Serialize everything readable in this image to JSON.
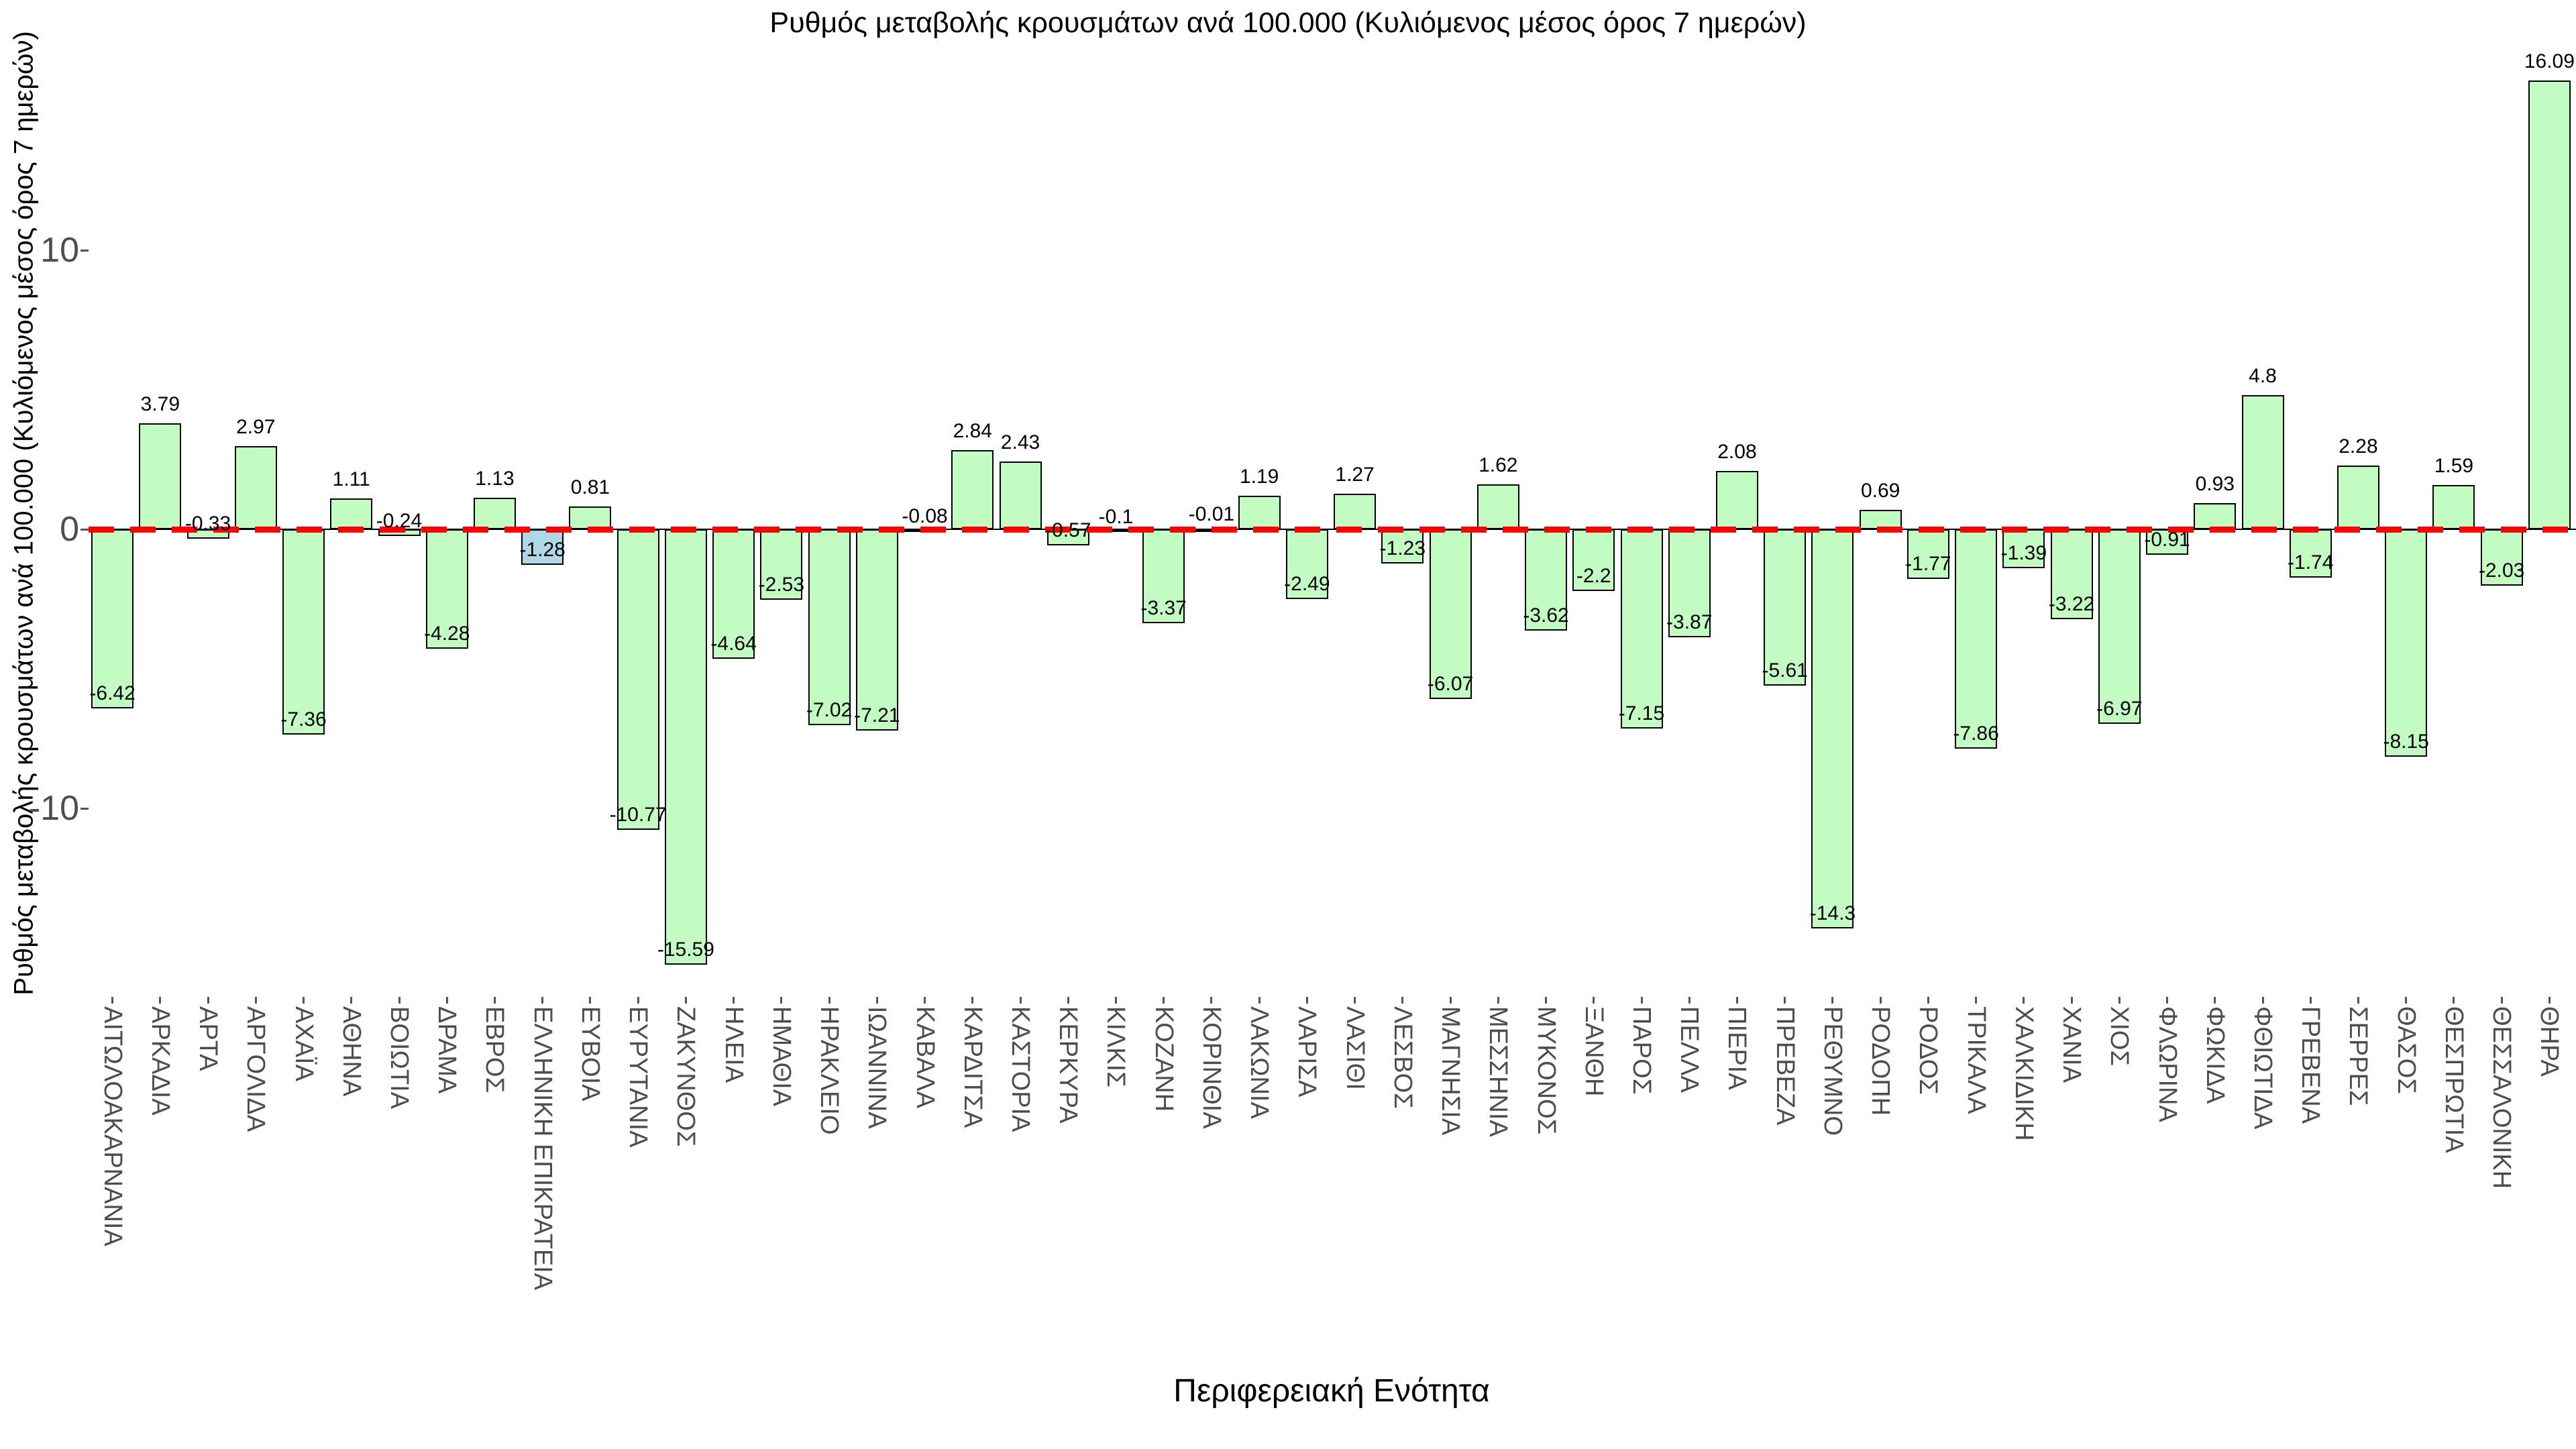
{
  "chart_data": {
    "type": "bar",
    "title": "Ρυθμός μεταβολής κρουσμάτων ανά 100.000 (Κυλιόμενος μέσος όρος 7 ημερών)",
    "xlabel": "Περιφερειακή Ενότητα",
    "ylabel": "Ρυθμός μεταβολής κρουσμάτων ανά 100.000 (Κυλιόμενος μέσος όρος 7 ημερών)",
    "categories": [
      "ΑΙΤΩΛΟΑΚΑΡΝΑΝΙΑ",
      "ΑΡΚΑΔΙΑ",
      "ΑΡΤΑ",
      "ΑΡΓΟΛΙΔΑ",
      "ΑΧΑΪΑ",
      "ΑΘΗΝΑ",
      "ΒΟΙΩΤΙΑ",
      "ΔΡΑΜΑ",
      "ΕΒΡΟΣ",
      "ΕΛΛΗΝΙΚΗ ΕΠΙΚΡΑΤΕΙΑ",
      "ΕΥΒΟΙΑ",
      "ΕΥΡΥΤΑΝΙΑ",
      "ΖΑΚΥΝΘΟΣ",
      "ΗΛΕΙΑ",
      "ΗΜΑΘΙΑ",
      "ΗΡΑΚΛΕΙΟ",
      "ΙΩΑΝΝΙΝΑ",
      "ΚΑΒΑΛΑ",
      "ΚΑΡΔΙΤΣΑ",
      "ΚΑΣΤΟΡΙΑ",
      "ΚΕΡΚΥΡΑ",
      "ΚΙΛΚΙΣ",
      "ΚΟΖΑΝΗ",
      "ΚΟΡΙΝΘΙΑ",
      "ΛΑΚΩΝΙΑ",
      "ΛΑΡΙΣΑ",
      "ΛΑΣΙΘΙ",
      "ΛΕΣΒΟΣ",
      "ΜΑΓΝΗΣΙΑ",
      "ΜΕΣΣΗΝΙΑ",
      "ΜΥΚΟΝΟΣ",
      "ΞΑΝΘΗ",
      "ΠΑΡΟΣ",
      "ΠΕΛΛΑ",
      "ΠΙΕΡΙΑ",
      "ΠΡΕΒΕΖΑ",
      "ΡΕΘΥΜΝΟ",
      "ΡΟΔΟΠΗ",
      "ΡΟΔΟΣ",
      "ΤΡΙΚΑΛΑ",
      "ΧΑΛΚΙΔΙΚΗ",
      "ΧΑΝΙΑ",
      "ΧΙΟΣ",
      "ΦΛΩΡΙΝΑ",
      "ΦΩΚΙΔΑ",
      "ΦΘΙΩΤΙΔΑ",
      "ΓΡΕΒΕΝΑ",
      "ΣΕΡΡΕΣ",
      "ΘΑΣΟΣ",
      "ΘΕΣΠΡΩΤΙΑ",
      "ΘΕΣΣΑΛΟΝΙΚΗ",
      "ΘΗΡΑ"
    ],
    "values": [
      -6.42,
      3.79,
      -0.33,
      2.97,
      -7.36,
      1.11,
      -0.24,
      -4.28,
      1.13,
      -1.28,
      0.81,
      -10.77,
      -15.59,
      -4.64,
      -2.53,
      -7.02,
      -7.21,
      -0.08,
      2.84,
      2.43,
      -0.57,
      -0.1,
      -3.37,
      -0.01,
      1.19,
      -2.49,
      1.27,
      -1.23,
      -6.07,
      1.62,
      -3.62,
      -2.2,
      -7.15,
      -3.87,
      2.08,
      -5.61,
      -14.3,
      0.69,
      -1.77,
      -7.86,
      -1.39,
      -3.22,
      -6.97,
      -0.91,
      0.93,
      4.8,
      -1.74,
      2.28,
      -8.15,
      1.59,
      -2.03,
      16.09
    ],
    "yticks": [
      10,
      0,
      -10
    ],
    "ylim": [
      -17,
      17.5
    ],
    "grid": false,
    "legend": "none",
    "highlight_category": "ΕΛΛΗΝΙΚΗ ΕΠΙΚΡΑΤΕΙΑ",
    "zero_line_style": "dashed",
    "colors": {
      "bar_fill": "#c3fcc3",
      "highlight_fill": "#aed8e6",
      "bar_border": "#000000",
      "zero_line": "#ff0000",
      "axis_tick_label": "#4d4d4d",
      "value_label": "#000000",
      "background": "#ffffff"
    }
  }
}
